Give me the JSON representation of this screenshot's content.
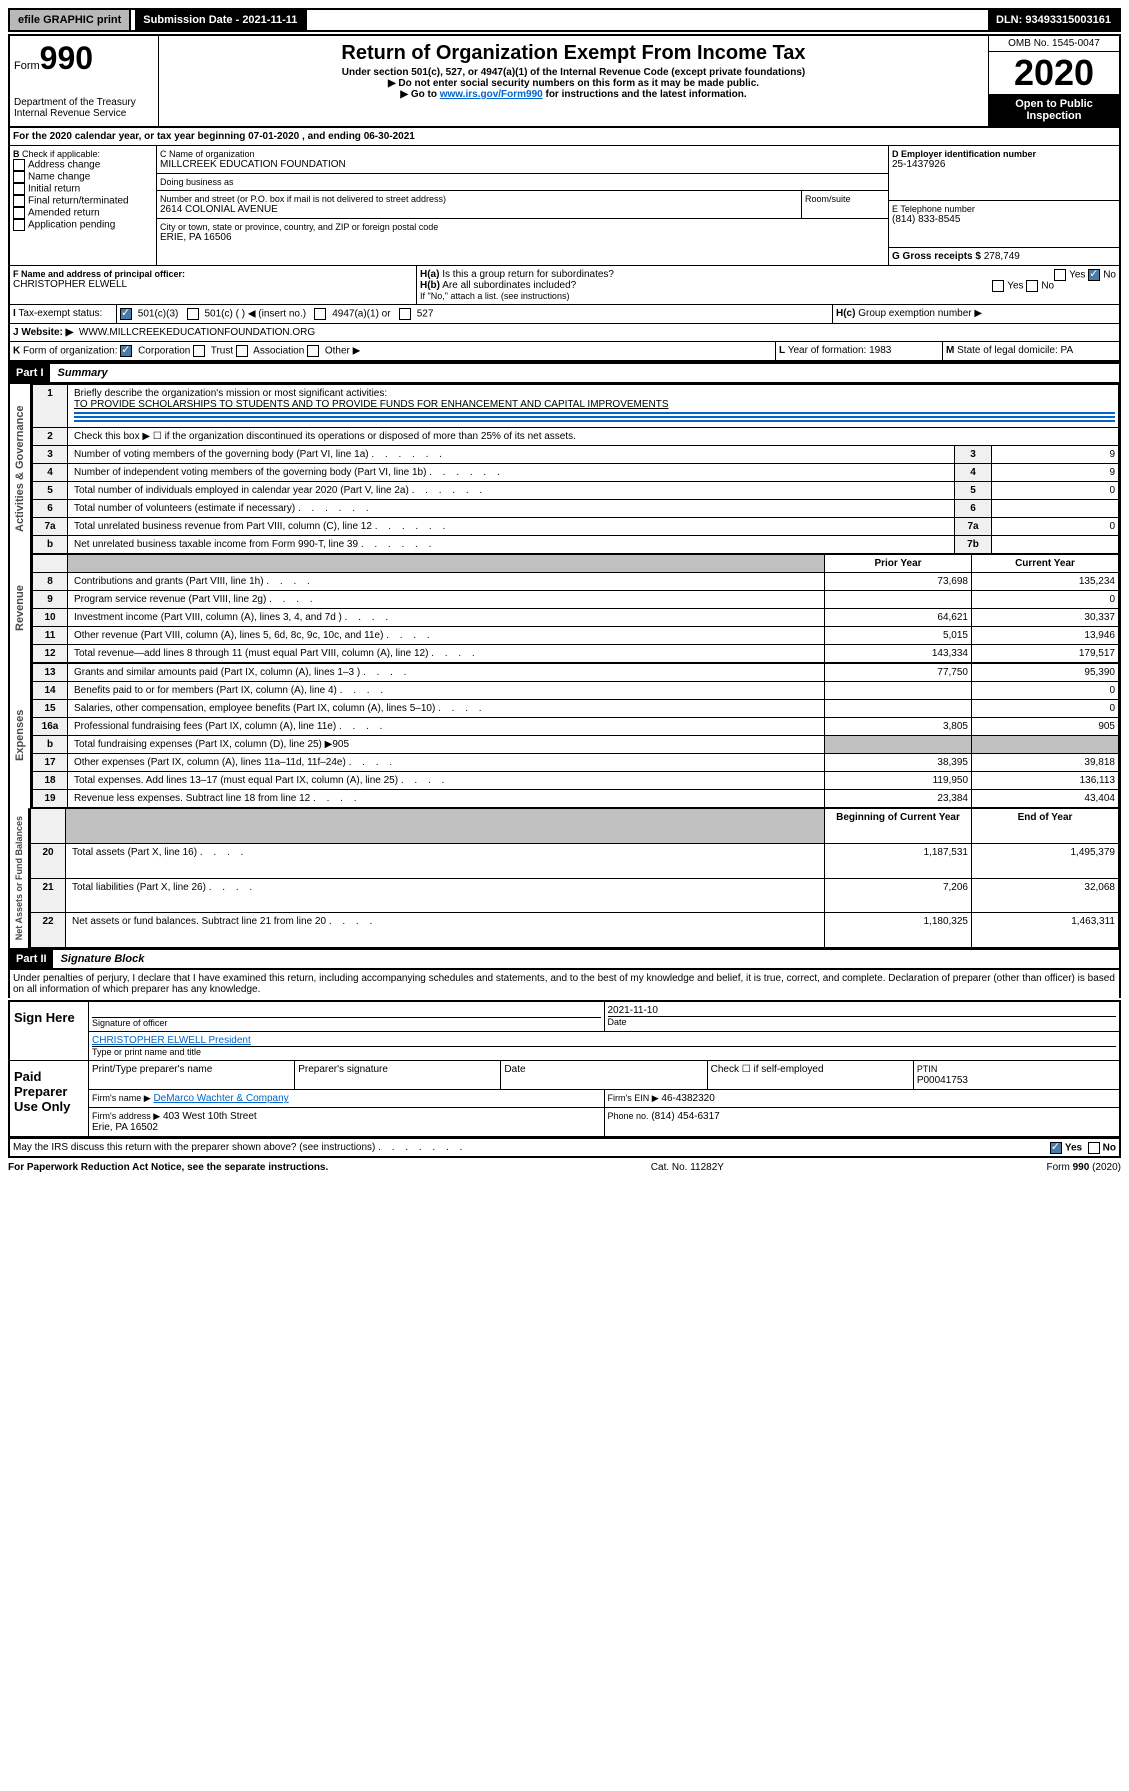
{
  "topbar": {
    "efile": "efile GRAPHIC print",
    "submission": "Submission Date - 2021-11-11",
    "dln": "DLN: 93493315003161"
  },
  "header": {
    "form_word": "Form",
    "form_num": "990",
    "title": "Return of Organization Exempt From Income Tax",
    "subtitle": "Under section 501(c), 527, or 4947(a)(1) of the Internal Revenue Code (except private foundations)",
    "note1": "▶ Do not enter social security numbers on this form as it may be made public.",
    "note2_pre": "▶ Go to ",
    "note2_link": "www.irs.gov/Form990",
    "note2_post": " for instructions and the latest information.",
    "dept": "Department of the Treasury\nInternal Revenue Service",
    "omb": "OMB No. 1545-0047",
    "year": "2020",
    "open": "Open to Public Inspection"
  },
  "periodA": "For the 2020 calendar year, or tax year beginning 07-01-2020    , and ending 06-30-2021",
  "boxB": {
    "label": "Check if applicable:",
    "opts": [
      "Address change",
      "Name change",
      "Initial return",
      "Final return/terminated",
      "Amended return",
      "Application pending"
    ]
  },
  "boxC": {
    "name_lbl": "C Name of organization",
    "name": "MILLCREEK EDUCATION FOUNDATION",
    "dba_lbl": "Doing business as",
    "addr_lbl": "Number and street (or P.O. box if mail is not delivered to street address)",
    "addr": "2614 COLONIAL AVENUE",
    "room_lbl": "Room/suite",
    "city_lbl": "City or town, state or province, country, and ZIP or foreign postal code",
    "city": "ERIE, PA  16506"
  },
  "boxD": {
    "lbl": "D Employer identification number",
    "val": "25-1437926"
  },
  "boxE": {
    "lbl": "E Telephone number",
    "val": "(814) 833-8545"
  },
  "boxG": {
    "lbl": "G Gross receipts $",
    "val": "278,749"
  },
  "boxF": {
    "lbl": "F  Name and address of principal officer:",
    "val": "CHRISTOPHER ELWELL"
  },
  "boxH": {
    "a": "Is this a group return for subordinates?",
    "b": "Are all subordinates included?",
    "b_note": "If \"No,\" attach a list. (see instructions)",
    "c": "Group exemption number ▶"
  },
  "boxI": {
    "lbl": "Tax-exempt status:",
    "opt1": "501(c)(3)",
    "opt2": "501(c) (  ) ◀ (insert no.)",
    "opt3": "4947(a)(1) or",
    "opt4": "527"
  },
  "boxJ": {
    "lbl": "Website: ▶",
    "val": "WWW.MILLCREEKEDUCATIONFOUNDATION.ORG"
  },
  "boxK": {
    "lbl": "Form of organization:",
    "opts": [
      "Corporation",
      "Trust",
      "Association",
      "Other ▶"
    ]
  },
  "boxL": {
    "lbl": "Year of formation:",
    "val": "1983"
  },
  "boxM": {
    "lbl": "State of legal domicile:",
    "val": "PA"
  },
  "part1": {
    "hdr": "Part I",
    "title": "Summary",
    "side1": "Activities & Governance",
    "side2": "Revenue",
    "side3": "Expenses",
    "side4": "Net Assets or Fund Balances",
    "l1_lbl": "Briefly describe the organization's mission or most significant activities:",
    "l1_val": "TO PROVIDE SCHOLARSHIPS TO STUDENTS AND TO PROVIDE FUNDS FOR ENHANCEMENT AND CAPITAL IMPROVEMENTS",
    "l2": "Check this box ▶ ☐  if the organization discontinued its operations or disposed of more than 25% of its net assets.",
    "lines": [
      {
        "n": "3",
        "t": "Number of voting members of the governing body (Part VI, line 1a)",
        "c": "3",
        "v": "9"
      },
      {
        "n": "4",
        "t": "Number of independent voting members of the governing body (Part VI, line 1b)",
        "c": "4",
        "v": "9"
      },
      {
        "n": "5",
        "t": "Total number of individuals employed in calendar year 2020 (Part V, line 2a)",
        "c": "5",
        "v": "0"
      },
      {
        "n": "6",
        "t": "Total number of volunteers (estimate if necessary)",
        "c": "6",
        "v": ""
      },
      {
        "n": "7a",
        "t": "Total unrelated business revenue from Part VIII, column (C), line 12",
        "c": "7a",
        "v": "0"
      },
      {
        "n": "b",
        "t": "Net unrelated business taxable income from Form 990-T, line 39",
        "c": "7b",
        "v": ""
      }
    ],
    "col_prior": "Prior Year",
    "col_curr": "Current Year",
    "rev": [
      {
        "n": "8",
        "t": "Contributions and grants (Part VIII, line 1h)",
        "p": "73,698",
        "c": "135,234"
      },
      {
        "n": "9",
        "t": "Program service revenue (Part VIII, line 2g)",
        "p": "",
        "c": "0"
      },
      {
        "n": "10",
        "t": "Investment income (Part VIII, column (A), lines 3, 4, and 7d )",
        "p": "64,621",
        "c": "30,337"
      },
      {
        "n": "11",
        "t": "Other revenue (Part VIII, column (A), lines 5, 6d, 8c, 9c, 10c, and 11e)",
        "p": "5,015",
        "c": "13,946"
      },
      {
        "n": "12",
        "t": "Total revenue—add lines 8 through 11 (must equal Part VIII, column (A), line 12)",
        "p": "143,334",
        "c": "179,517"
      }
    ],
    "exp": [
      {
        "n": "13",
        "t": "Grants and similar amounts paid (Part IX, column (A), lines 1–3 )",
        "p": "77,750",
        "c": "95,390"
      },
      {
        "n": "14",
        "t": "Benefits paid to or for members (Part IX, column (A), line 4)",
        "p": "",
        "c": "0"
      },
      {
        "n": "15",
        "t": "Salaries, other compensation, employee benefits (Part IX, column (A), lines 5–10)",
        "p": "",
        "c": "0"
      },
      {
        "n": "16a",
        "t": "Professional fundraising fees (Part IX, column (A), line 11e)",
        "p": "3,805",
        "c": "905"
      },
      {
        "n": "b",
        "t": "Total fundraising expenses (Part IX, column (D), line 25) ▶905",
        "p": "",
        "c": "",
        "grey": true
      },
      {
        "n": "17",
        "t": "Other expenses (Part IX, column (A), lines 11a–11d, 11f–24e)",
        "p": "38,395",
        "c": "39,818"
      },
      {
        "n": "18",
        "t": "Total expenses. Add lines 13–17 (must equal Part IX, column (A), line 25)",
        "p": "119,950",
        "c": "136,113"
      },
      {
        "n": "19",
        "t": "Revenue less expenses. Subtract line 18 from line 12",
        "p": "23,384",
        "c": "43,404"
      }
    ],
    "col_beg": "Beginning of Current Year",
    "col_end": "End of Year",
    "net": [
      {
        "n": "20",
        "t": "Total assets (Part X, line 16)",
        "p": "1,187,531",
        "c": "1,495,379"
      },
      {
        "n": "21",
        "t": "Total liabilities (Part X, line 26)",
        "p": "7,206",
        "c": "32,068"
      },
      {
        "n": "22",
        "t": "Net assets or fund balances. Subtract line 21 from line 20",
        "p": "1,180,325",
        "c": "1,463,311"
      }
    ]
  },
  "part2": {
    "hdr": "Part II",
    "title": "Signature Block",
    "decl": "Under penalties of perjury, I declare that I have examined this return, including accompanying schedules and statements, and to the best of my knowledge and belief, it is true, correct, and complete. Declaration of preparer (other than officer) is based on all information of which preparer has any knowledge.",
    "sign_here": "Sign Here",
    "sig_officer": "Signature of officer",
    "sig_date": "2021-11-10",
    "date_lbl": "Date",
    "officer_name": "CHRISTOPHER ELWELL  President",
    "officer_lbl": "Type or print name and title",
    "paid": "Paid Preparer Use Only",
    "prep_name_lbl": "Print/Type preparer's name",
    "prep_sig_lbl": "Preparer's signature",
    "prep_date_lbl": "Date",
    "self_emp": "Check ☐ if self-employed",
    "ptin_lbl": "PTIN",
    "ptin": "P00041753",
    "firm_name_lbl": "Firm's name    ▶",
    "firm_name": "DeMarco Wachter & Company",
    "firm_ein_lbl": "Firm's EIN ▶",
    "firm_ein": "46-4382320",
    "firm_addr_lbl": "Firm's address ▶",
    "firm_addr": "403 West 10th Street",
    "firm_city": "Erie, PA  16502",
    "phone_lbl": "Phone no.",
    "phone": "(814) 454-6317",
    "discuss": "May the IRS discuss this return with the preparer shown above? (see instructions)"
  },
  "footer": {
    "pra": "For Paperwork Reduction Act Notice, see the separate instructions.",
    "cat": "Cat. No. 11282Y",
    "form": "Form 990 (2020)"
  }
}
